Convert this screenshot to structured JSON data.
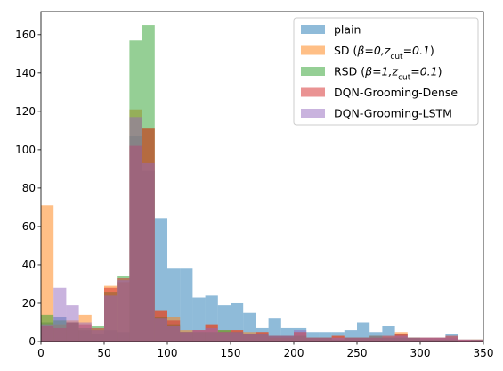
{
  "chart_data": {
    "type": "bar",
    "bin_width": 10,
    "xlim": [
      0,
      350
    ],
    "ylim": [
      0,
      172
    ],
    "x_ticks": [
      0,
      50,
      100,
      150,
      200,
      250,
      300,
      350
    ],
    "y_ticks": [
      0,
      20,
      40,
      60,
      80,
      100,
      120,
      140,
      160
    ],
    "legend_position": "upper-right",
    "bin_starts": [
      0,
      10,
      20,
      30,
      40,
      50,
      60,
      70,
      80,
      90,
      100,
      110,
      120,
      130,
      140,
      150,
      160,
      170,
      180,
      190,
      200,
      210,
      220,
      230,
      240,
      250,
      260,
      270,
      280,
      290,
      300,
      310,
      320,
      330,
      340
    ],
    "series": [
      {
        "name": "plain",
        "color": "#1f77b4",
        "values": [
          10,
          13,
          10,
          6,
          4,
          6,
          5,
          107,
          89,
          64,
          38,
          38,
          23,
          24,
          19,
          20,
          15,
          7,
          12,
          7,
          7,
          5,
          5,
          5,
          6,
          10,
          5,
          8,
          4,
          2,
          2,
          2,
          4,
          1,
          0
        ]
      },
      {
        "name": "SD ($\\beta=0,z_{\\rm cut}=0.1$)",
        "color": "#ff7f0e",
        "values": [
          71,
          9,
          11,
          14,
          6,
          29,
          31,
          121,
          111,
          16,
          13,
          6,
          6,
          9,
          6,
          6,
          5,
          5,
          2,
          2,
          5,
          2,
          2,
          3,
          2,
          2,
          3,
          2,
          5,
          2,
          2,
          2,
          2,
          1,
          1
        ]
      },
      {
        "name": "RSD ($\\beta=1,z_{\\rm cut}=0.1$)",
        "color": "#2ca02c",
        "values": [
          14,
          11,
          10,
          7,
          8,
          26,
          34,
          157,
          165,
          13,
          9,
          5,
          5,
          5,
          6,
          5,
          4,
          4,
          3,
          3,
          3,
          2,
          2,
          1,
          2,
          2,
          3,
          2,
          2,
          2,
          1,
          1,
          1,
          0,
          1
        ]
      },
      {
        "name": "DQN-Grooming-Dense",
        "color": "#d62728",
        "values": [
          8,
          7,
          10,
          9,
          7,
          28,
          33,
          102,
          111,
          16,
          11,
          5,
          6,
          9,
          5,
          6,
          4,
          5,
          3,
          3,
          5,
          2,
          2,
          3,
          2,
          2,
          2,
          3,
          4,
          2,
          2,
          2,
          3,
          1,
          1
        ]
      },
      {
        "name": "DQN-Grooming-LSTM",
        "color": "#9467bd",
        "values": [
          9,
          28,
          19,
          10,
          6,
          24,
          32,
          117,
          93,
          12,
          8,
          5,
          6,
          7,
          5,
          5,
          4,
          4,
          3,
          3,
          6,
          2,
          2,
          2,
          2,
          2,
          3,
          2,
          3,
          2,
          2,
          2,
          2,
          1,
          1
        ]
      }
    ]
  }
}
